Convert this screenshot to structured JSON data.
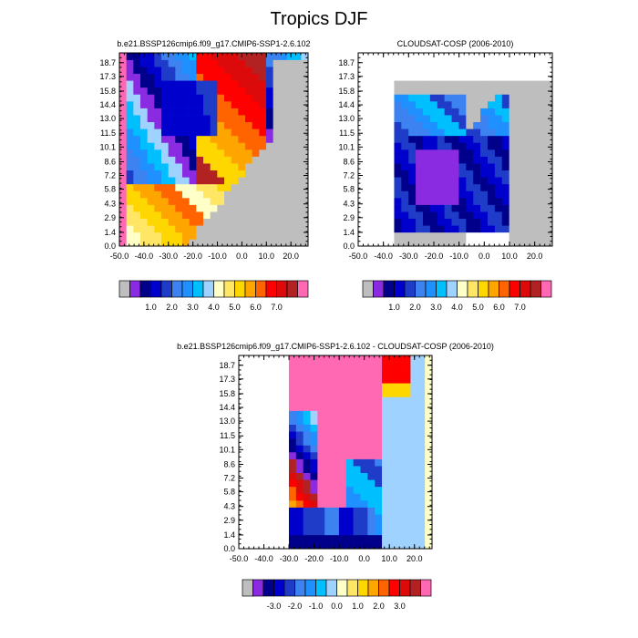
{
  "figure": {
    "title": "Tropics DJF"
  },
  "chart_data": [
    {
      "type": "heatmap",
      "title": "b.e21.BSSP126cmip6.f09_g17.CMIP6-SSP1-2.6.102",
      "x_ticks": [
        "-50.0",
        "-40.0",
        "-30.0",
        "-20.0",
        "-10.0",
        "0.0",
        "10.0",
        "20.0"
      ],
      "y_ticks": [
        "0.0",
        "1.4",
        "2.9",
        "4.3",
        "5.8",
        "7.2",
        "8.6",
        "10.1",
        "11.5",
        "13.0",
        "14.4",
        "15.8",
        "17.3",
        "18.7"
      ],
      "xlim": [
        -50.0,
        27.0
      ],
      "ylim": [
        0.0,
        19.7
      ],
      "colorbar": {
        "labels": [
          "1.0",
          "2.0",
          "3.0",
          "4.0",
          "5.0",
          "6.0",
          "7.0"
        ],
        "colors": [
          "#bebebe",
          "#8a2be2",
          "#00008b",
          "#0000cd",
          "#1e3cc8",
          "#3c82f0",
          "#1e90ff",
          "#00bfff",
          "#a0d2ff",
          "#ffffc8",
          "#ffe664",
          "#ffd700",
          "#ffa500",
          "#ff6400",
          "#ff0000",
          "#dc0a0a",
          "#b22222",
          "#ff69b4"
        ]
      },
      "grid": [
        "KKKKKKKKKKKKKKKKKKKKKKKKKKKKKKKKKKKK",
        "KKKKKKKKKKKKKKKKKKKKKKKKKKKKKKKKKKKK",
        "RRRRRRRRRRRRRRRRRRRRRRRRRRRRRRRRRRRR",
        "RRRRRRRRRRRRRRRRRRRRRRRRRRRRRRRRRRRR",
        "RRRRRRRRRRRRRRRRRRRRRRRRRRRRRRRRRRRR",
        "RRRRRRRRRRRRRRRRRRRRRRRRRRRRRRRRRRRR",
        "RRRRRRRRRRRRRRRRRRRRRRRRRRRRRRRRRRRR",
        "RRRRRRRRRRRRRRRRRRRRRRRRRRRRRRRRRRRR",
        "RRRRRRRRRRRRRRRRRRRRRRRRRRRRRRRRRRRR",
        "RRRRRRRRRRRRRRRRRRRRRRRRRRRRRRRRRRRR"
      ],
      "panel": 1
    },
    {
      "type": "heatmap",
      "title": "CLOUDSAT-COSP (2006-2010)",
      "x_ticks": [
        "-50.0",
        "-40.0",
        "-30.0",
        "-20.0",
        "-10.0",
        "0.0",
        "10.0",
        "20.0"
      ],
      "y_ticks": [
        "0.0",
        "1.4",
        "2.9",
        "4.3",
        "5.8",
        "7.2",
        "8.6",
        "10.1",
        "11.5",
        "13.0",
        "14.4",
        "15.8",
        "17.3",
        "18.7"
      ],
      "xlim": [
        -50.0,
        27.0
      ],
      "ylim": [
        0.0,
        19.7
      ],
      "colorbar": {
        "labels": [
          "1.0",
          "2.0",
          "3.0",
          "4.0",
          "5.0",
          "6.0",
          "7.0"
        ],
        "colors": [
          "#bebebe",
          "#8a2be2",
          "#00008b",
          "#0000cd",
          "#1e3cc8",
          "#3c82f0",
          "#1e90ff",
          "#00bfff",
          "#a0d2ff",
          "#ffffc8",
          "#ffe664",
          "#ffd700",
          "#ffa500",
          "#ff6400",
          "#ff0000",
          "#dc0a0a",
          "#b22222",
          "#ff69b4"
        ]
      },
      "panel": 2
    },
    {
      "type": "heatmap",
      "title": "b.e21.BSSP126cmip6.f09_g17.CMIP6-SSP1-2.6.102 - CLOUDSAT-COSP (2006-2010)",
      "x_ticks": [
        "-50.0",
        "-40.0",
        "-30.0",
        "-20.0",
        "-10.0",
        "0.0",
        "10.0",
        "20.0"
      ],
      "y_ticks": [
        "0.0",
        "1.4",
        "2.9",
        "4.3",
        "5.8",
        "7.2",
        "8.6",
        "10.1",
        "11.5",
        "13.0",
        "14.4",
        "15.8",
        "17.3",
        "18.7"
      ],
      "xlim": [
        -50.0,
        27.0
      ],
      "ylim": [
        0.0,
        19.7
      ],
      "colorbar": {
        "labels": [
          "-3.0",
          "-2.0",
          "-1.0",
          "0.0",
          "1.0",
          "2.0",
          "3.0"
        ],
        "colors": [
          "#bebebe",
          "#8a2be2",
          "#00008b",
          "#0000cd",
          "#1e3cc8",
          "#3c82f0",
          "#1e90ff",
          "#00bfff",
          "#a0d2ff",
          "#ffffc8",
          "#ffe664",
          "#ffd700",
          "#ffa500",
          "#ff6400",
          "#ff0000",
          "#dc0a0a",
          "#b22222",
          "#ff69b4"
        ]
      },
      "panel": 3
    }
  ]
}
